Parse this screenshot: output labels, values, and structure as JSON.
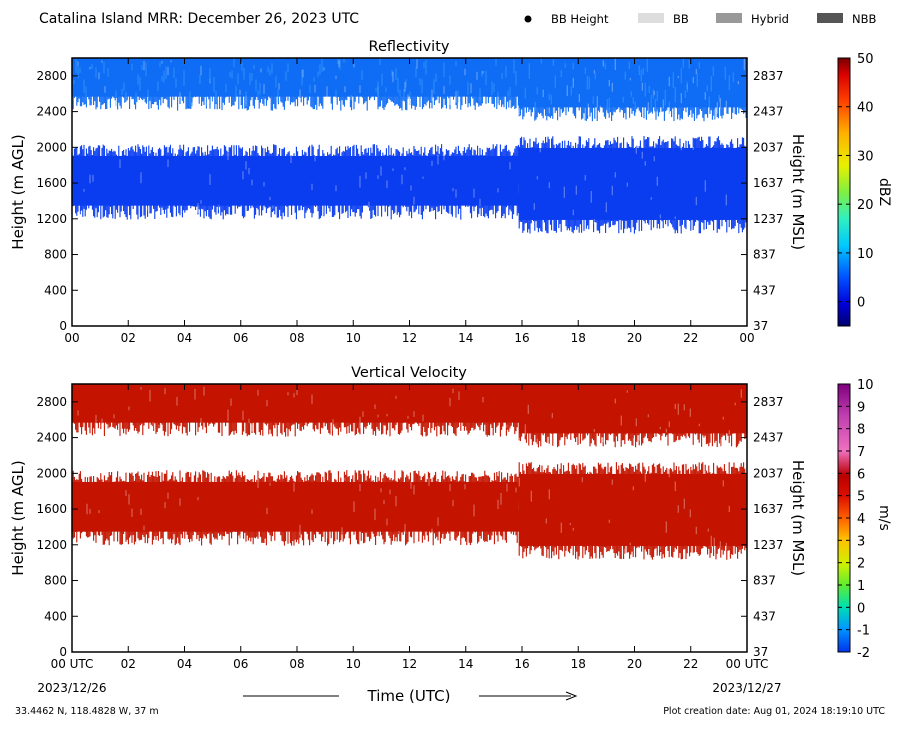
{
  "header": {
    "title": "Catalina Island MRR:  December 26, 2023 UTC",
    "legend": [
      {
        "name": "BB Height",
        "marker": "dot",
        "color": "#000000"
      },
      {
        "name": "BB",
        "marker": "swatch",
        "color": "#dddddd"
      },
      {
        "name": "Hybrid",
        "marker": "swatch",
        "color": "#999999"
      },
      {
        "name": "NBB",
        "marker": "swatch",
        "color": "#555555"
      }
    ]
  },
  "chart_data": [
    {
      "type": "heatmap",
      "title": "Reflectivity",
      "xlabel": "",
      "ylabel": "Height (m AGL)",
      "y2label": "Height (m MSL)",
      "x_ticks": [
        "00",
        "02",
        "04",
        "06",
        "08",
        "10",
        "12",
        "14",
        "16",
        "18",
        "20",
        "22",
        "00"
      ],
      "xlim": [
        0,
        24
      ],
      "ylim": [
        0,
        3000
      ],
      "y_ticks": [
        0,
        400,
        800,
        1200,
        1600,
        2000,
        2400,
        2800
      ],
      "y2_ticks": [
        37,
        437,
        837,
        1237,
        1637,
        2037,
        2437,
        2837
      ],
      "colorbar": {
        "label": "dBZ",
        "min": -5,
        "max": 50,
        "ticks": [
          0,
          10,
          20,
          30,
          40,
          50
        ]
      },
      "layers": [
        {
          "x_start": 0,
          "x_end": 15.9,
          "y_bottom": 2500,
          "y_top": 3000,
          "value": 3
        },
        {
          "x_start": 15.9,
          "x_end": 24,
          "y_bottom": 2380,
          "y_top": 3000,
          "value": 4
        },
        {
          "x_start": 0,
          "x_end": 15.9,
          "y_bottom": 1280,
          "y_top": 1970,
          "value": -1
        },
        {
          "x_start": 15.9,
          "x_end": 24,
          "y_bottom": 1120,
          "y_top": 2060,
          "value": -1
        }
      ]
    },
    {
      "type": "heatmap",
      "title": "Vertical Velocity",
      "xlabel": "Time (UTC)",
      "ylabel": "Height (m AGL)",
      "y2label": "Height (m MSL)",
      "x_ticks": [
        "00 UTC",
        "02",
        "04",
        "06",
        "08",
        "10",
        "12",
        "14",
        "16",
        "18",
        "20",
        "22",
        "00 UTC"
      ],
      "x_date_start": "2023/12/26",
      "x_date_end": "2023/12/27",
      "xlim": [
        0,
        24
      ],
      "ylim": [
        0,
        3000
      ],
      "y_ticks": [
        0,
        400,
        800,
        1200,
        1600,
        2000,
        2400,
        2800
      ],
      "y2_ticks": [
        37,
        437,
        837,
        1237,
        1637,
        2037,
        2437,
        2837
      ],
      "colorbar": {
        "label": "m/s",
        "min": -2,
        "max": 10,
        "ticks": [
          -2,
          -1,
          0,
          1,
          2,
          3,
          4,
          5,
          6,
          7,
          8,
          9,
          10
        ]
      },
      "layers": [
        {
          "x_start": 0,
          "x_end": 15.9,
          "y_bottom": 2500,
          "y_top": 3000,
          "value": 5.7
        },
        {
          "x_start": 15.9,
          "x_end": 24,
          "y_bottom": 2380,
          "y_top": 3000,
          "value": 5.7
        },
        {
          "x_start": 0,
          "x_end": 15.9,
          "y_bottom": 1280,
          "y_top": 1970,
          "value": 5.7
        },
        {
          "x_start": 15.9,
          "x_end": 24,
          "y_bottom": 1120,
          "y_top": 2060,
          "value": 5.7
        }
      ]
    }
  ],
  "footer": {
    "location": "33.4462 N, 118.4828 W, 37 m",
    "creation": "Plot creation date: Aug 01, 2024 18:19:10 UTC"
  },
  "colors": {
    "reflectivity_layer": "#0a3df0",
    "reflectivity_top": "#0f6cf5",
    "velocity_layer": "#c41400"
  }
}
